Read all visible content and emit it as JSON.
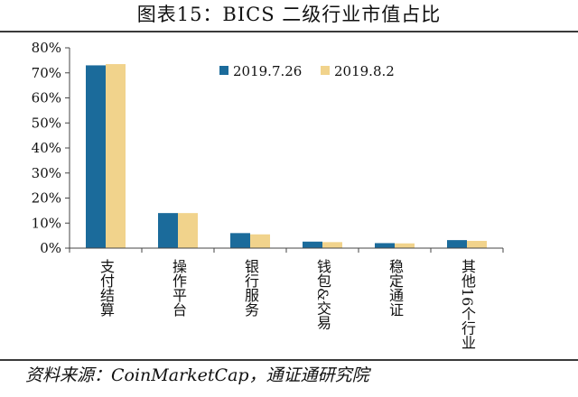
{
  "chart_data": {
    "type": "bar",
    "title": "图表15：BICS 二级行业市值占比",
    "categories": [
      "支付结算",
      "操作平台",
      "银行服务",
      "钱包&交易",
      "稳定通证",
      "其他16个行业"
    ],
    "series": [
      {
        "name": "2019.7.26",
        "color": "#1b6b9b",
        "values": [
          73,
          14,
          6,
          2.6,
          2,
          3.2
        ]
      },
      {
        "name": "2019.8.2",
        "color": "#f1d38c",
        "values": [
          73.5,
          14,
          5.5,
          2.4,
          1.9,
          2.9
        ]
      }
    ],
    "ylim": [
      0,
      80
    ],
    "yticks": [
      0,
      10,
      20,
      30,
      40,
      50,
      60,
      70,
      80
    ],
    "ytick_labels": [
      "0%",
      "10%",
      "20%",
      "30%",
      "40%",
      "50%",
      "60%",
      "70%",
      "80%"
    ],
    "legend": "top",
    "grid": false
  },
  "source": "资料来源：CoinMarketCap，通证通研究院"
}
